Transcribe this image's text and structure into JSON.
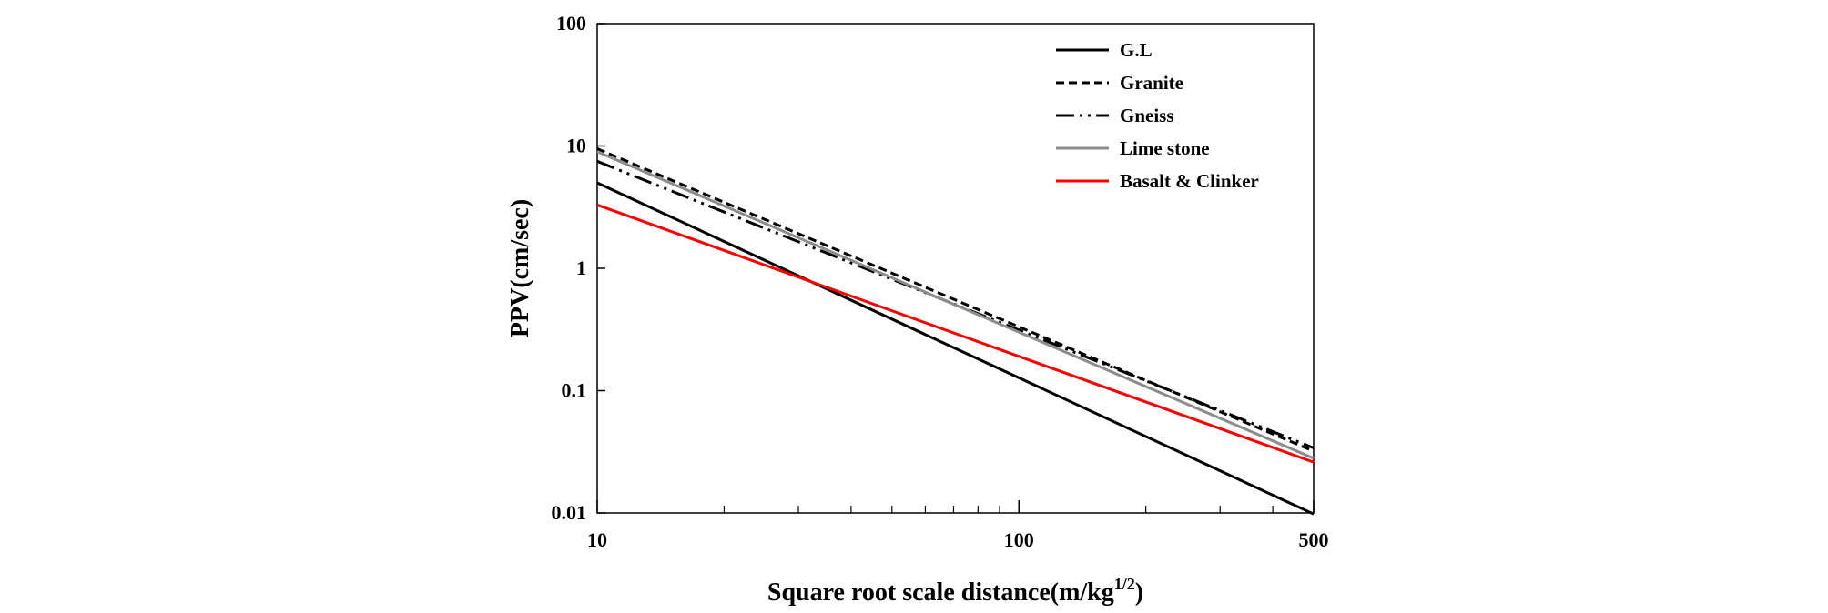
{
  "chart_data": {
    "type": "line",
    "title": "",
    "xlabel": "Square root scale distance(m/kg",
    "xlabel_sup": "1/2",
    "xlabel_tail": ")",
    "ylabel": "PPV(cm/sec)",
    "x_scale": "log",
    "y_scale": "log",
    "xlim": [
      10,
      500
    ],
    "ylim": [
      0.01,
      100
    ],
    "x_ticks": [
      10,
      100,
      500
    ],
    "x_tick_labels": [
      "10",
      "100",
      "500"
    ],
    "y_ticks": [
      0.01,
      0.1,
      1,
      10,
      100
    ],
    "y_tick_labels": [
      "0.01",
      "0.1",
      "1",
      "10",
      "100"
    ],
    "grid": false,
    "legend_position": "top-right",
    "series": [
      {
        "name": "G.L",
        "x": [
          10,
          500
        ],
        "y": [
          5.0,
          0.0098
        ],
        "color": "#000000",
        "style": "solid"
      },
      {
        "name": "Granite",
        "x": [
          10,
          500
        ],
        "y": [
          9.5,
          0.032
        ],
        "color": "#000000",
        "style": "dashed"
      },
      {
        "name": "Gneiss",
        "x": [
          10,
          500
        ],
        "y": [
          7.5,
          0.034
        ],
        "color": "#000000",
        "style": "dashdotdot"
      },
      {
        "name": "Lime stone",
        "x": [
          10,
          500
        ],
        "y": [
          9.0,
          0.028
        ],
        "color": "#8c8c8c",
        "style": "solid"
      },
      {
        "name": "Basalt & Clinker",
        "x": [
          10,
          500
        ],
        "y": [
          3.3,
          0.026
        ],
        "color": "#ff0000",
        "style": "solid"
      }
    ]
  }
}
